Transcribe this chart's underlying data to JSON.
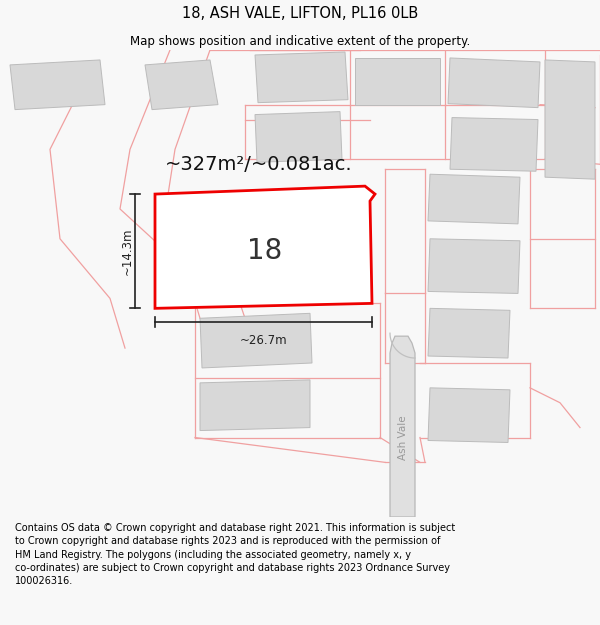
{
  "title": "18, ASH VALE, LIFTON, PL16 0LB",
  "subtitle": "Map shows position and indicative extent of the property.",
  "footer": "Contains OS data © Crown copyright and database right 2021. This information is subject\nto Crown copyright and database rights 2023 and is reproduced with the permission of\nHM Land Registry. The polygons (including the associated geometry, namely x, y\nco-ordinates) are subject to Crown copyright and database rights 2023 Ordnance Survey\n100026316.",
  "area_label": "~327m²/~0.081ac.",
  "width_label": "~26.7m",
  "height_label": "~14.3m",
  "plot_number": "18",
  "bg_color": "#f8f8f8",
  "map_bg": "#ffffff",
  "plot_color": "#ee0000",
  "plot_fill": "#ffffff",
  "building_color": "#d8d8d8",
  "pink_line": "#f0a0a0",
  "dim_color": "#222222",
  "title_fontsize": 10.5,
  "subtitle_fontsize": 8.5,
  "footer_fontsize": 7.0,
  "area_fontsize": 14,
  "plot_num_fontsize": 20,
  "dim_fontsize": 8.5
}
